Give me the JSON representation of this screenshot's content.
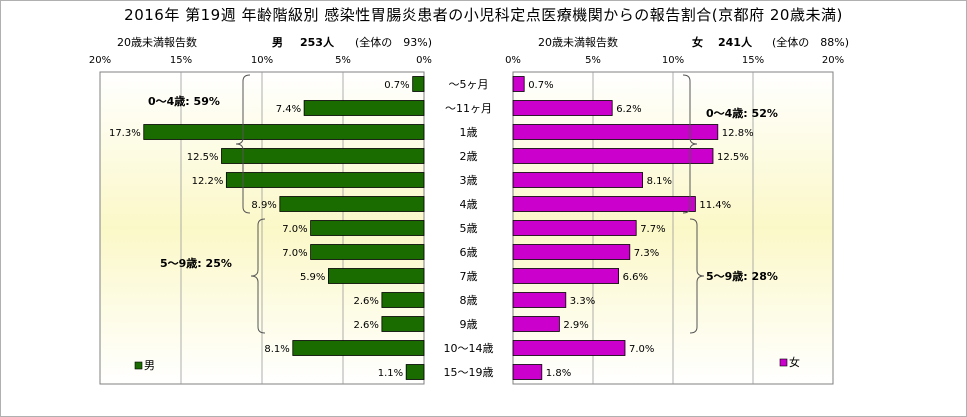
{
  "title": "2016年 第19週 年齢階級別 感染性胃腸炎患者の小児科定点医療機関からの報告割合(京都府 20歳未満)",
  "male_header": {
    "caption": "20歳未満報告数",
    "sex": "男",
    "count": "253人",
    "share": "(全体の　93%)"
  },
  "female_header": {
    "caption": "20歳未満報告数",
    "sex": "女",
    "count": "241人",
    "share": "(全体の　88%)"
  },
  "chart_data": {
    "type": "bar",
    "orientation": "horizontal-population-pyramid",
    "categories": [
      "～5ヶ月",
      "～11ヶ月",
      "1歳",
      "2歳",
      "3歳",
      "4歳",
      "5歳",
      "6歳",
      "7歳",
      "8歳",
      "9歳",
      "10～14歳",
      "15～19歳"
    ],
    "series": [
      {
        "name": "男",
        "color": "#1a6b00",
        "values": [
          0.7,
          7.4,
          17.3,
          12.5,
          12.2,
          8.9,
          7.0,
          7.0,
          5.9,
          2.6,
          2.6,
          8.1,
          1.1
        ],
        "labels": [
          "0.7%",
          "7.4%",
          "17.3%",
          "12.5%",
          "12.2%",
          "8.9%",
          "7.0%",
          "7.0%",
          "5.9%",
          "2.6%",
          "2.6%",
          "8.1%",
          "1.1%"
        ]
      },
      {
        "name": "女",
        "color": "#cc00cc",
        "values": [
          0.7,
          6.2,
          12.8,
          12.5,
          8.1,
          11.4,
          7.7,
          7.3,
          6.6,
          3.3,
          2.9,
          7.0,
          1.8
        ],
        "labels": [
          "0.7%",
          "6.2%",
          "12.8%",
          "12.5%",
          "8.1%",
          "11.4%",
          "7.7%",
          "7.3%",
          "6.6%",
          "3.3%",
          "2.9%",
          "7.0%",
          "1.8%"
        ]
      }
    ],
    "xlim": [
      0,
      20
    ],
    "male_ticks": [
      "20%",
      "15%",
      "10%",
      "5%",
      "0%"
    ],
    "female_ticks": [
      "0%",
      "5%",
      "10%",
      "15%",
      "20%"
    ],
    "annotations": {
      "male_0_4": "0～4歳: 59%",
      "male_5_9": "5～9歳: 25%",
      "female_0_4": "0～4歳: 52%",
      "female_5_9": "5～9歳: 28%"
    },
    "background": {
      "type": "vertical-gradient",
      "top": "#ffffff",
      "middle": "#fbf8c8",
      "bottom": "#ffffff"
    },
    "grid": true
  }
}
